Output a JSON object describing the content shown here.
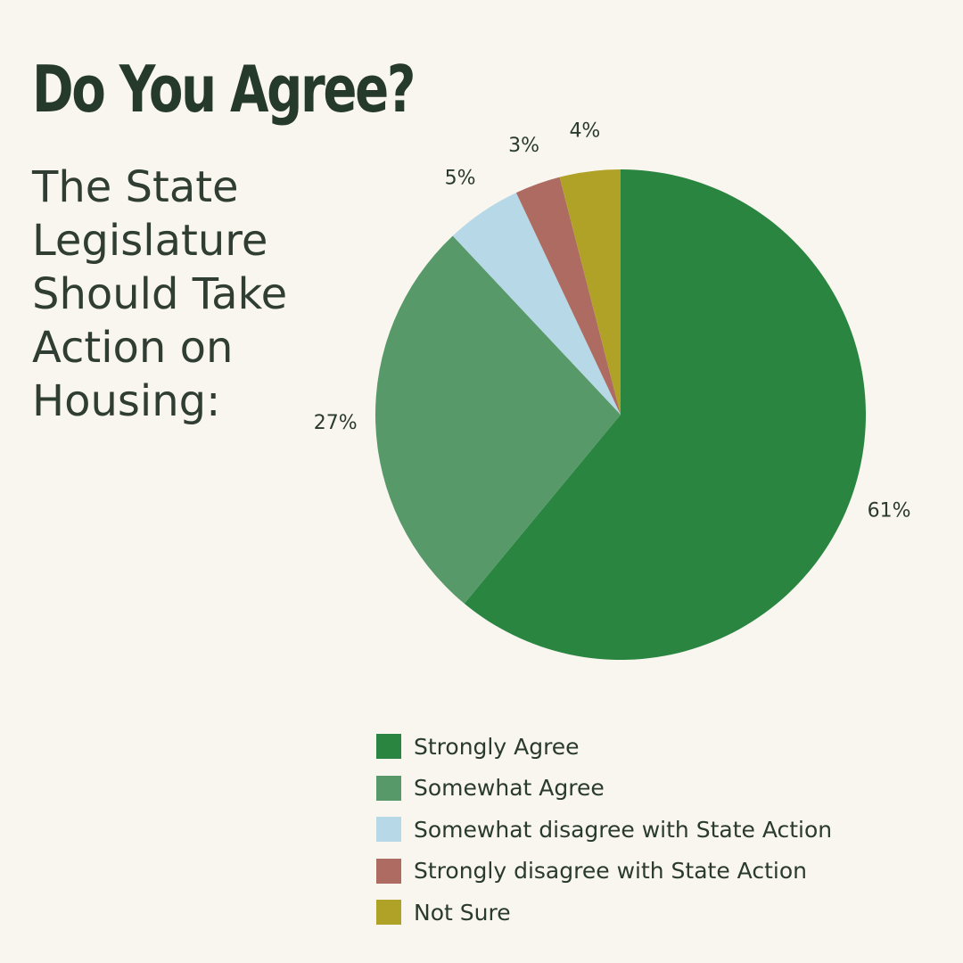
{
  "header": {
    "title": "Do You Agree?",
    "subtitle": "The State Legislature Should Take Action on Housing:"
  },
  "chart_data": {
    "type": "pie",
    "title": "Do You Agree?",
    "subtitle": "The State Legislature Should Take Action on Housing:",
    "legend_position": "bottom-right",
    "slices": [
      {
        "name": "Strongly Agree",
        "value": 61,
        "label": "61%",
        "color": "#2a8541"
      },
      {
        "name": "Somewhat Agree",
        "value": 27,
        "label": "27%",
        "color": "#579968"
      },
      {
        "name": "Somewhat disagree with State Action",
        "value": 5,
        "label": "5%",
        "color": "#b7d8e6"
      },
      {
        "name": "Strongly disagree with State Action",
        "value": 3,
        "label": "3%",
        "color": "#ad6b62"
      },
      {
        "name": "Not Sure",
        "value": 4,
        "label": "4%",
        "color": "#b0a127"
      }
    ]
  }
}
